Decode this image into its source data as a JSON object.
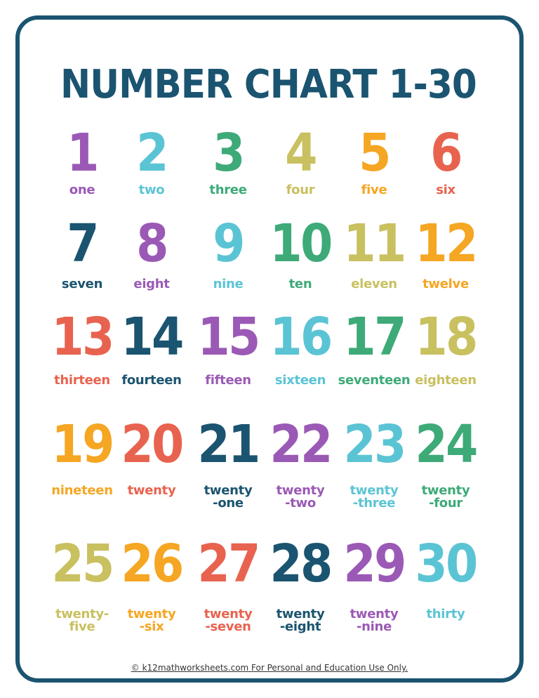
{
  "title": "NUMBER CHART 1-30",
  "colors": [
    "#9b59b6",
    "#5bc4d4",
    "#3daa78",
    "#c9c060",
    "#f5a623",
    "#e8634f",
    "#1b5470"
  ],
  "numbers": [
    {
      "n": "1",
      "word": "one"
    },
    {
      "n": "2",
      "word": "two"
    },
    {
      "n": "3",
      "word": "three"
    },
    {
      "n": "4",
      "word": "four"
    },
    {
      "n": "5",
      "word": "five"
    },
    {
      "n": "6",
      "word": "six"
    },
    {
      "n": "7",
      "word": "seven"
    },
    {
      "n": "8",
      "word": "eight"
    },
    {
      "n": "9",
      "word": "nine"
    },
    {
      "n": "10",
      "word": "ten"
    },
    {
      "n": "11",
      "word": "eleven"
    },
    {
      "n": "12",
      "word": "twelve"
    },
    {
      "n": "13",
      "word": "thirteen"
    },
    {
      "n": "14",
      "word": "fourteen"
    },
    {
      "n": "15",
      "word": "fifteen"
    },
    {
      "n": "16",
      "word": "sixteen"
    },
    {
      "n": "17",
      "word": "seventeen"
    },
    {
      "n": "18",
      "word": "eighteen"
    },
    {
      "n": "19",
      "word": "nineteen"
    },
    {
      "n": "20",
      "word": "twenty"
    },
    {
      "n": "21",
      "word": "twenty\n-one"
    },
    {
      "n": "22",
      "word": "twenty\n-two"
    },
    {
      "n": "23",
      "word": "twenty\n-three"
    },
    {
      "n": "24",
      "word": "twenty\n-four"
    },
    {
      "n": "25",
      "word": "twenty-\nfive"
    },
    {
      "n": "26",
      "word": "twenty\n-six"
    },
    {
      "n": "27",
      "word": "twenty\n-seven"
    },
    {
      "n": "28",
      "word": "twenty\n-eight"
    },
    {
      "n": "29",
      "word": "twenty\n-nine"
    },
    {
      "n": "30",
      "word": "thirty"
    }
  ],
  "footer": "© k12mathworksheets.com For Personal and Education Use Only."
}
